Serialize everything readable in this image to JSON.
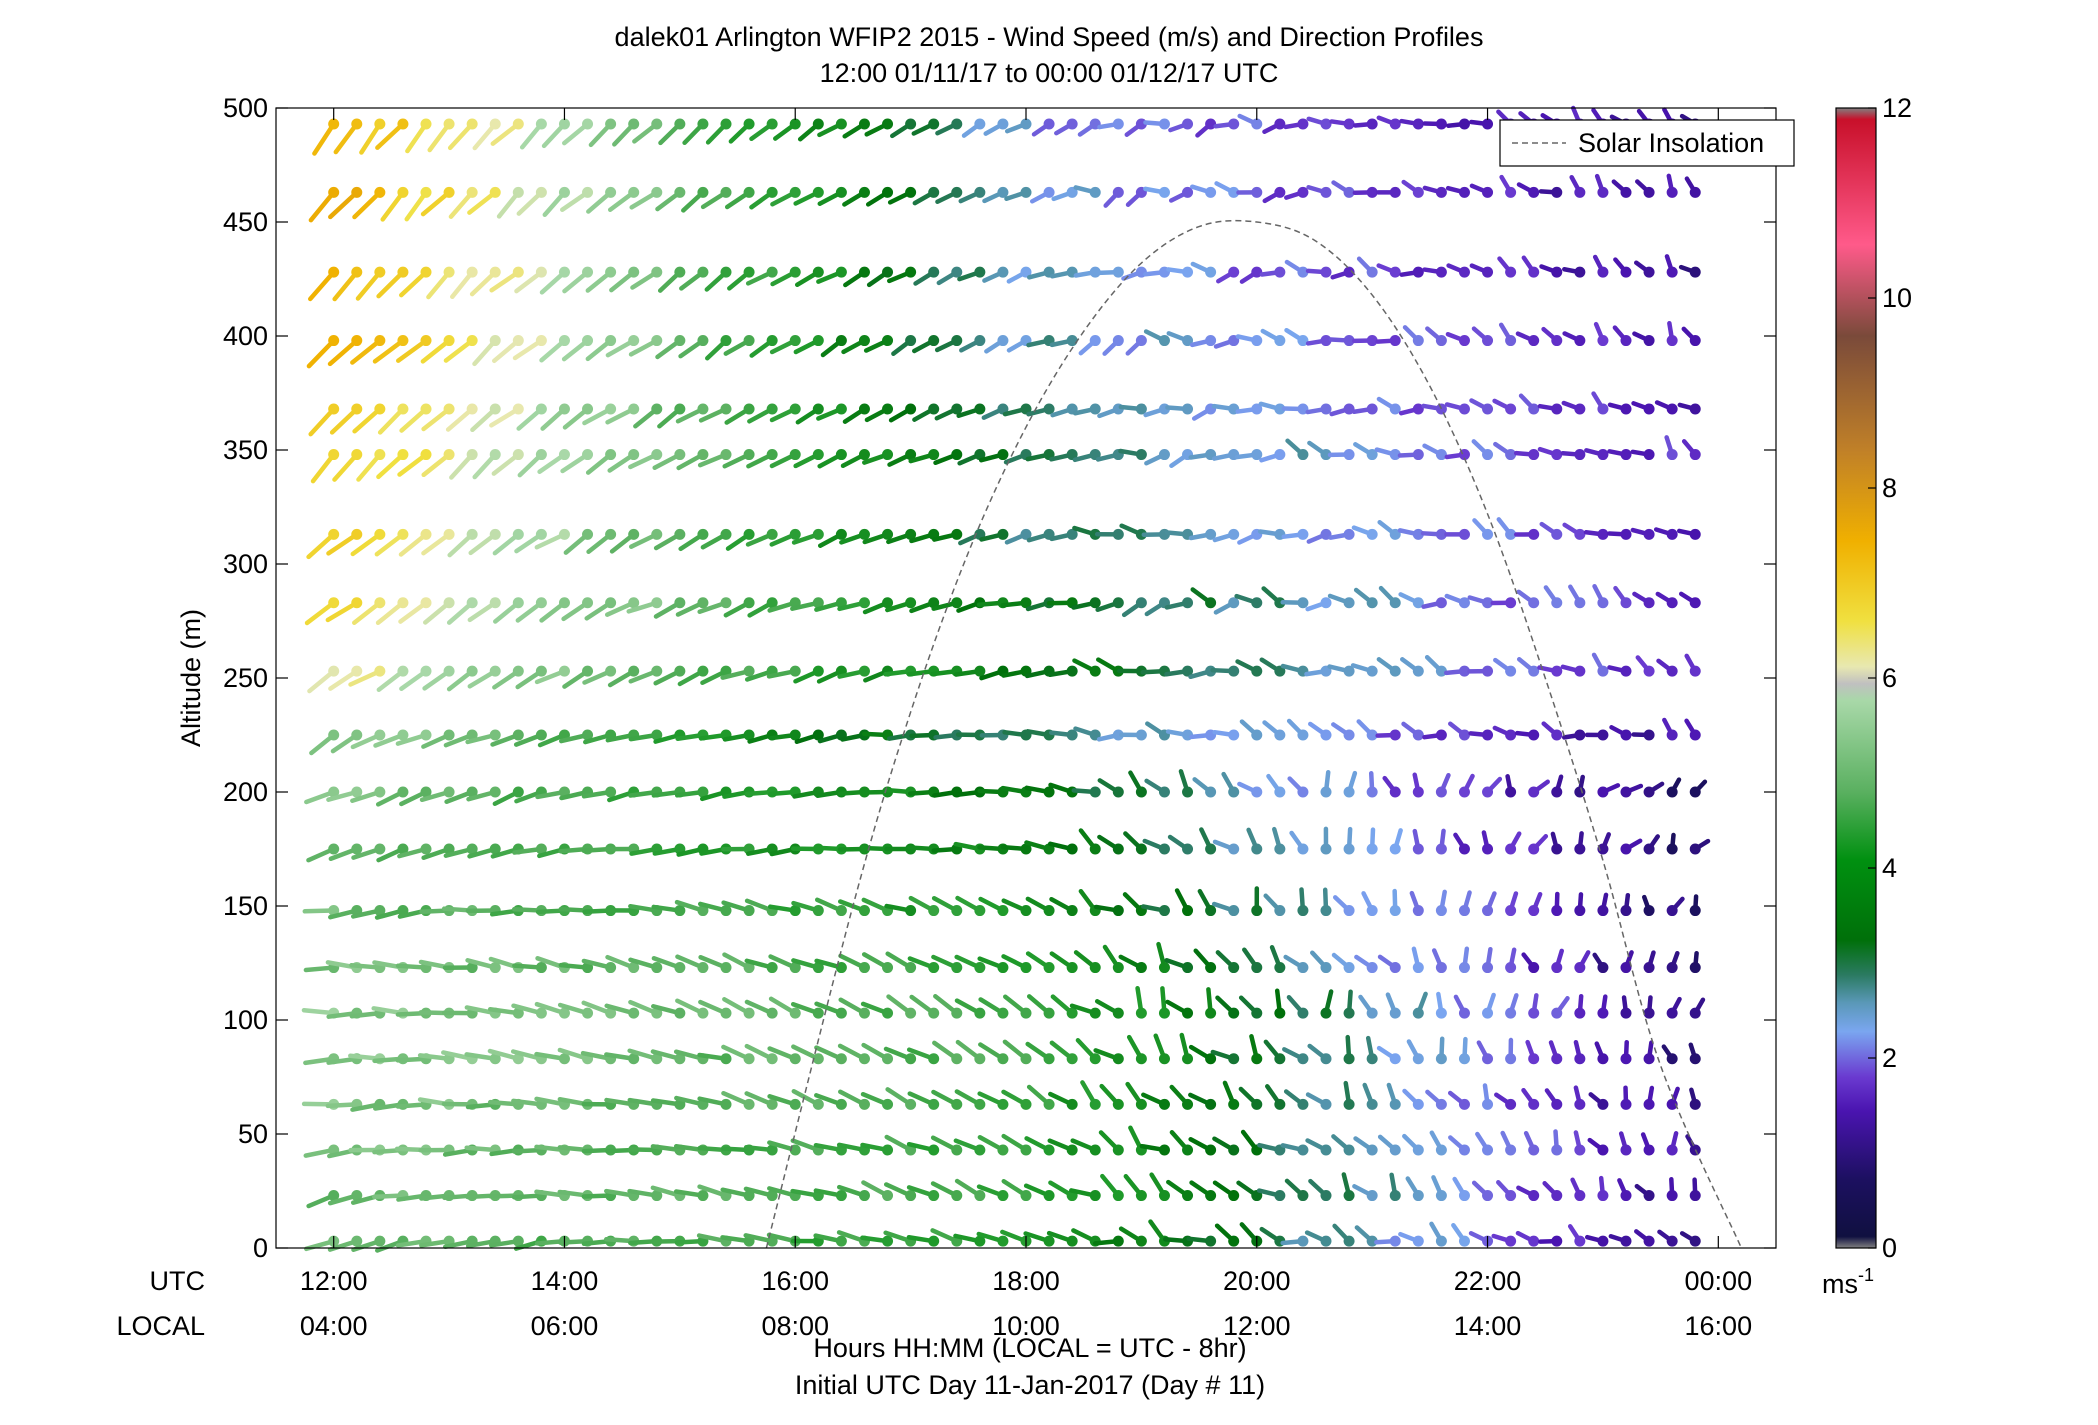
{
  "chart_data": {
    "type": "wind_barb_profile",
    "title": "dalek01 Arlington WFIP2 2015 - Wind Speed (m/s) and Direction Profiles",
    "subtitle": "12:00 01/11/17 to 00:00 01/12/17  UTC",
    "ylabel": "Altitude (m)",
    "xlabel": "Hours HH:MM  (LOCAL = UTC - 8hr)",
    "xlabel2": "Initial UTC Day 11-Jan-2017 (Day # 11)",
    "utc_label": "UTC",
    "local_label": "LOCAL",
    "x_ticks_utc": [
      "12:00",
      "14:00",
      "16:00",
      "18:00",
      "20:00",
      "22:00",
      "00:00"
    ],
    "x_ticks_local": [
      "04:00",
      "06:00",
      "08:00",
      "10:00",
      "12:00",
      "14:00",
      "16:00"
    ],
    "x_tick_hours": [
      12,
      14,
      16,
      18,
      20,
      22,
      24
    ],
    "xlim_hours": [
      11.5,
      24.5
    ],
    "y_ticks": [
      0,
      50,
      100,
      150,
      200,
      250,
      300,
      350,
      400,
      450,
      500
    ],
    "ylim": [
      0,
      500
    ],
    "colorbar": {
      "ticks": [
        0,
        2,
        4,
        6,
        8,
        10,
        12
      ],
      "range": [
        0,
        12
      ],
      "unit_base": "ms",
      "unit_exp": "-1"
    },
    "legend": {
      "label": "Solar Insolation",
      "placement": "top-right",
      "style": "dashed"
    },
    "solar_insolation": {
      "note_free": true,
      "x_hours": [
        15.75,
        16.5,
        17.0,
        17.5,
        18.0,
        18.5,
        19.0,
        19.5,
        20.0,
        20.5,
        21.0,
        21.5,
        22.0,
        22.5,
        23.0,
        23.5,
        24.2
      ],
      "y": [
        0,
        150,
        235,
        305,
        360,
        402,
        432,
        448,
        450,
        442,
        418,
        378,
        322,
        250,
        170,
        80,
        0
      ]
    },
    "time_start_hour": 12.0,
    "time_step_hours": 0.2,
    "heights": [
      3,
      23,
      43,
      63,
      83,
      103,
      123,
      148,
      175,
      200,
      225,
      253,
      283,
      313,
      348,
      368,
      398,
      428,
      463,
      493
    ],
    "profiles": [
      {
        "height": 3,
        "samples": 60,
        "speed_start": 5.0,
        "speed_mid": 4.2,
        "speed_end": 1.0,
        "dir_start": 250,
        "dir_mid": 290,
        "dir_end": 300
      },
      {
        "height": 23,
        "samples": 60,
        "speed_start": 5.0,
        "speed_mid": 4.5,
        "speed_end": 1.0,
        "dir_start": 255,
        "dir_mid": 300,
        "dir_end": 330
      },
      {
        "height": 43,
        "samples": 60,
        "speed_start": 5.2,
        "speed_mid": 4.3,
        "speed_end": 1.2,
        "dir_start": 260,
        "dir_mid": 295,
        "dir_end": 340
      },
      {
        "height": 63,
        "samples": 60,
        "speed_start": 5.3,
        "speed_mid": 4.4,
        "speed_end": 1.0,
        "dir_start": 265,
        "dir_mid": 300,
        "dir_end": 350
      },
      {
        "height": 83,
        "samples": 60,
        "speed_start": 5.4,
        "speed_mid": 4.5,
        "speed_end": 1.0,
        "dir_start": 268,
        "dir_mid": 300,
        "dir_end": 0
      },
      {
        "height": 103,
        "samples": 60,
        "speed_start": 5.4,
        "speed_mid": 4.5,
        "speed_end": 1.0,
        "dir_start": 270,
        "dir_mid": 305,
        "dir_end": 20
      },
      {
        "height": 123,
        "samples": 60,
        "speed_start": 5.2,
        "speed_mid": 4.3,
        "speed_end": 0.8,
        "dir_start": 272,
        "dir_mid": 300,
        "dir_end": 10
      },
      {
        "height": 148,
        "samples": 60,
        "speed_start": 5.0,
        "speed_mid": 4.0,
        "speed_end": 0.8,
        "dir_start": 260,
        "dir_mid": 295,
        "dir_end": 20
      },
      {
        "height": 175,
        "samples": 60,
        "speed_start": 5.0,
        "speed_mid": 3.6,
        "speed_end": 0.8,
        "dir_start": 250,
        "dir_mid": 275,
        "dir_end": 40
      },
      {
        "height": 200,
        "samples": 60,
        "speed_start": 5.2,
        "speed_mid": 3.4,
        "speed_end": 0.8,
        "dir_start": 245,
        "dir_mid": 270,
        "dir_end": 60
      },
      {
        "height": 225,
        "samples": 60,
        "speed_start": 5.5,
        "speed_mid": 2.8,
        "speed_end": 1.2,
        "dir_start": 240,
        "dir_mid": 270,
        "dir_end": 300
      },
      {
        "height": 253,
        "samples": 60,
        "speed_start": 6.2,
        "speed_mid": 3.5,
        "speed_end": 1.5,
        "dir_start": 235,
        "dir_mid": 260,
        "dir_end": 305
      },
      {
        "height": 283,
        "samples": 60,
        "speed_start": 6.6,
        "speed_mid": 3.5,
        "speed_end": 1.5,
        "dir_start": 230,
        "dir_mid": 260,
        "dir_end": 310
      },
      {
        "height": 313,
        "samples": 60,
        "speed_start": 6.8,
        "speed_mid": 3.0,
        "speed_end": 1.6,
        "dir_start": 228,
        "dir_mid": 255,
        "dir_end": 310
      },
      {
        "height": 348,
        "samples": 60,
        "speed_start": 7.0,
        "speed_mid": 3.0,
        "speed_end": 1.6,
        "dir_start": 225,
        "dir_mid": 250,
        "dir_end": 315
      },
      {
        "height": 368,
        "samples": 60,
        "speed_start": 7.0,
        "speed_mid": 2.8,
        "speed_end": 1.5,
        "dir_start": 225,
        "dir_mid": 248,
        "dir_end": 315
      },
      {
        "height": 398,
        "samples": 60,
        "speed_start": 7.3,
        "speed_mid": 2.6,
        "speed_end": 1.4,
        "dir_start": 222,
        "dir_mid": 245,
        "dir_end": 320
      },
      {
        "height": 428,
        "samples": 60,
        "speed_start": 7.4,
        "speed_mid": 2.5,
        "speed_end": 1.2,
        "dir_start": 222,
        "dir_mid": 245,
        "dir_end": 320
      },
      {
        "height": 463,
        "samples": 60,
        "speed_start": 7.5,
        "speed_mid": 2.4,
        "speed_end": 1.2,
        "dir_start": 220,
        "dir_mid": 242,
        "dir_end": 320
      },
      {
        "height": 493,
        "samples": 60,
        "speed_start": 7.5,
        "speed_mid": 2.3,
        "speed_end": 1.2,
        "dir_start": 220,
        "dir_mid": 240,
        "dir_end": 320
      }
    ]
  }
}
